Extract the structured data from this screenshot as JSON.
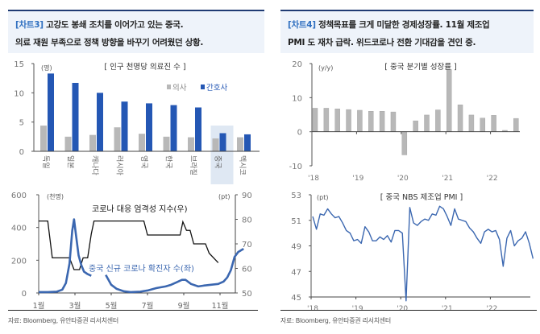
{
  "headers": {
    "left": {
      "tag": "[차트3]",
      "line1": " 고강도 봉쇄 조치를 이어가고 있는 중국.",
      "line2": "의료 재원 부족으로 정책 방향을 바꾸기 어려웠던 상황."
    },
    "right": {
      "tag": "[차트4]",
      "line1": " 정책목표를 크게 미달한 경제성장률. 11월 제조업",
      "line2": "PMI 도 재차 급락. 위드코로나 전환 기대감을 견인 중."
    }
  },
  "sources": {
    "left": "자료: Bloomberg, 유안타증권 리서치센터",
    "right": "자료: Bloomberg, 유안타증권 리서치센터"
  },
  "colors": {
    "accent_blue": "#2457b4",
    "gray_bar": "#b8b8b8",
    "line_blue": "#3b67b0",
    "black": "#111111",
    "highlight": "#dfe8f3"
  },
  "chart_data": [
    {
      "id": "medical-staff",
      "type": "bar",
      "title": "[ 인구 천명당 의료진 수 ]",
      "ylabel": "(명)",
      "ylim": [
        0,
        15
      ],
      "yticks": [
        0,
        5,
        10,
        15
      ],
      "categories": [
        "독일",
        "일본",
        "캐나다",
        "러시아",
        "영국",
        "한국",
        "브라질",
        "중국",
        "멕시코"
      ],
      "highlight_category": "중국",
      "series": [
        {
          "name": "의사",
          "values": [
            4.4,
            2.5,
            2.8,
            4.1,
            3.0,
            2.5,
            2.4,
            2.2,
            2.4
          ]
        },
        {
          "name": "간호사",
          "values": [
            13.3,
            11.7,
            10.0,
            8.5,
            8.2,
            7.9,
            7.5,
            3.1,
            2.9
          ]
        }
      ],
      "legend": "top-right"
    },
    {
      "id": "gdp-growth",
      "type": "bar",
      "title": "[ 중국 분기별 성장률 ]",
      "ylabel": "(y/y)",
      "ylim": [
        -10,
        20
      ],
      "yticks": [
        -10,
        0,
        10,
        20
      ],
      "xticks": [
        "'18",
        "'19",
        "'20",
        "'21",
        "'22"
      ],
      "categories": [
        "18Q1",
        "18Q2",
        "18Q3",
        "18Q4",
        "19Q1",
        "19Q2",
        "19Q3",
        "19Q4",
        "20Q1",
        "20Q2",
        "20Q3",
        "20Q4",
        "21Q1",
        "21Q2",
        "21Q3",
        "21Q4",
        "22Q1",
        "22Q2",
        "22Q3"
      ],
      "values": [
        6.9,
        6.9,
        6.7,
        6.5,
        6.3,
        6.0,
        6.0,
        5.8,
        -6.8,
        3.2,
        4.9,
        6.4,
        18.3,
        7.9,
        4.9,
        4.0,
        4.8,
        0.4,
        3.9
      ]
    },
    {
      "id": "covid-stringency",
      "type": "line",
      "title": "",
      "xticks": [
        "1월",
        "3월",
        "5월",
        "7월",
        "9월",
        "11월"
      ],
      "x_months_range": [
        1,
        12.4
      ],
      "left_axis": {
        "label": "(천명)",
        "ylim": [
          0,
          600
        ],
        "yticks": [
          0,
          200,
          400,
          600
        ]
      },
      "right_axis": {
        "label": "(pt)",
        "ylim": [
          50,
          90
        ],
        "yticks": [
          50,
          60,
          70,
          80,
          90
        ]
      },
      "series": [
        {
          "name": "코로나 대응 엄격성 지수(우)",
          "axis": "right",
          "x": [
            1.0,
            1.5,
            1.75,
            2.7,
            2.95,
            3.25,
            3.45,
            3.7,
            3.9,
            4.05,
            6.8,
            7.0,
            8.8,
            8.95,
            9.15,
            9.35,
            9.55,
            10.2,
            10.4,
            10.9
          ],
          "y": [
            79.3,
            79.3,
            64.3,
            64.3,
            59.5,
            59.5,
            64.3,
            64.3,
            74,
            79.3,
            79.3,
            73.6,
            73.6,
            79,
            75.5,
            75.5,
            70,
            70,
            66.2,
            62.3
          ]
        },
        {
          "name": "중국 신규 코로나 확진자 수(좌)",
          "axis": "left",
          "segments": [
            {
              "x": [
                1.0,
                1.5,
                2.0,
                2.3,
                2.5,
                2.7,
                2.85,
                2.95,
                3.05,
                3.2,
                3.35,
                3.5,
                3.7,
                3.9
              ],
              "y": [
                5,
                5,
                8,
                20,
                60,
                180,
                380,
                450,
                360,
                230,
                170,
                130,
                115,
                105
              ]
            },
            {
              "x": [
                4.7,
                5.0,
                5.3,
                5.7,
                6.1,
                6.6,
                7.0,
                7.5,
                8.0,
                8.3,
                8.6,
                8.9,
                9.1,
                9.4,
                9.8,
                10.1,
                10.5,
                10.9,
                11.2,
                11.4,
                11.6,
                11.8,
                12.0,
                12.3
              ],
              "y": [
                110,
                50,
                25,
                10,
                5,
                8,
                15,
                30,
                40,
                50,
                65,
                80,
                80,
                55,
                40,
                45,
                50,
                55,
                70,
                95,
                140,
                220,
                250,
                270
              ]
            }
          ]
        }
      ]
    },
    {
      "id": "pmi",
      "type": "line",
      "title": "[ 중국 NBS 제조업 PMI ]",
      "ylabel": "(pt)",
      "ylim": [
        45,
        53
      ],
      "yticks": [
        45,
        47,
        49,
        51,
        53
      ],
      "xticks": [
        "'18",
        "'19",
        "'20",
        "'21",
        "'22"
      ],
      "x_start": "2018-01",
      "values": [
        51.3,
        50.3,
        51.5,
        51.4,
        51.9,
        51.5,
        51.2,
        51.3,
        50.8,
        50.2,
        50.0,
        49.4,
        49.5,
        49.2,
        50.5,
        50.1,
        49.4,
        49.4,
        49.7,
        49.5,
        49.8,
        49.3,
        50.2,
        50.2,
        50.0,
        35.7,
        52.0,
        50.8,
        50.6,
        50.9,
        51.1,
        51.0,
        51.5,
        51.4,
        52.1,
        51.9,
        51.3,
        50.6,
        51.9,
        51.1,
        51.0,
        50.9,
        50.4,
        50.1,
        49.6,
        49.2,
        50.1,
        50.3,
        50.1,
        50.2,
        49.5,
        47.4,
        49.6,
        50.2,
        49.0,
        49.4,
        49.6,
        50.1,
        49.2,
        48.0
      ]
    }
  ]
}
